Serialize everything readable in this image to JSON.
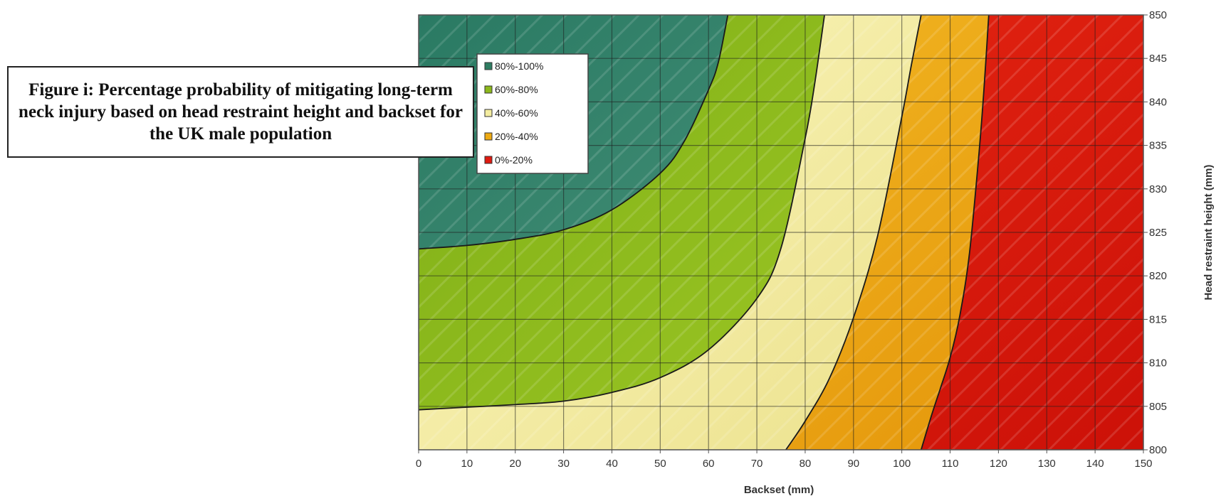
{
  "caption": "Figure i: Percentage probability of mitigating long-term neck injury based on head restraint height and backset for the UK male population",
  "chart_data": {
    "type": "area",
    "title": "",
    "xlabel": "Backset (mm)",
    "ylabel": "Head restraint height (mm)",
    "xlim": [
      0,
      150
    ],
    "ylim": [
      800,
      850
    ],
    "x_ticks": [
      0,
      10,
      20,
      30,
      40,
      50,
      60,
      70,
      80,
      90,
      100,
      110,
      120,
      130,
      140,
      150
    ],
    "y_ticks": [
      800,
      805,
      810,
      815,
      820,
      825,
      830,
      835,
      840,
      845,
      850
    ],
    "x_tick_labels": [
      "0",
      "10",
      "20",
      "30",
      "40",
      "50",
      "60",
      "70",
      "80",
      "90",
      "100",
      "110",
      "120",
      "130",
      "140",
      "150"
    ],
    "y_tick_labels": [
      "800",
      "805",
      "810",
      "815",
      "820",
      "825",
      "830",
      "835",
      "840",
      "845",
      "850"
    ],
    "grid": true,
    "legend_position": "top-left",
    "legend": [
      {
        "label": "80%-100%",
        "color": "#2e7d62"
      },
      {
        "label": "60%-80%",
        "color": "#8cb81c"
      },
      {
        "label": "40%-60%",
        "color": "#f4eda0"
      },
      {
        "label": "20%-40%",
        "color": "#eeaa12"
      },
      {
        "label": "0%-20%",
        "color": "#df1a10"
      }
    ],
    "boundaries": [
      {
        "name": "80%",
        "points": [
          [
            0,
            823.1
          ],
          [
            10,
            823.5
          ],
          [
            20,
            824.2
          ],
          [
            30,
            825.3
          ],
          [
            40,
            827.6
          ],
          [
            50,
            831.8
          ],
          [
            55,
            835.5
          ],
          [
            60,
            841.4
          ],
          [
            62,
            844.5
          ],
          [
            64,
            850
          ]
        ]
      },
      {
        "name": "60%",
        "points": [
          [
            0,
            804.6
          ],
          [
            10,
            804.9
          ],
          [
            20,
            805.2
          ],
          [
            30,
            805.6
          ],
          [
            40,
            806.6
          ],
          [
            50,
            808.3
          ],
          [
            60,
            811.5
          ],
          [
            70,
            817.4
          ],
          [
            75,
            823.2
          ],
          [
            80,
            835.8
          ],
          [
            82,
            842.2
          ],
          [
            84,
            850
          ]
        ]
      },
      {
        "name": "40%",
        "points": [
          [
            76,
            800
          ],
          [
            80,
            803.3
          ],
          [
            85,
            808.2
          ],
          [
            90,
            815.2
          ],
          [
            95,
            824.6
          ],
          [
            100,
            838.3
          ],
          [
            102,
            844.3
          ],
          [
            104,
            850
          ]
        ]
      },
      {
        "name": "20%",
        "points": [
          [
            104,
            800
          ],
          [
            106,
            803.7
          ],
          [
            108,
            807.1
          ],
          [
            110,
            810.6
          ],
          [
            112,
            815.4
          ],
          [
            114,
            822.6
          ],
          [
            116,
            834.3
          ],
          [
            117,
            841.4
          ],
          [
            118,
            850
          ]
        ]
      }
    ]
  }
}
